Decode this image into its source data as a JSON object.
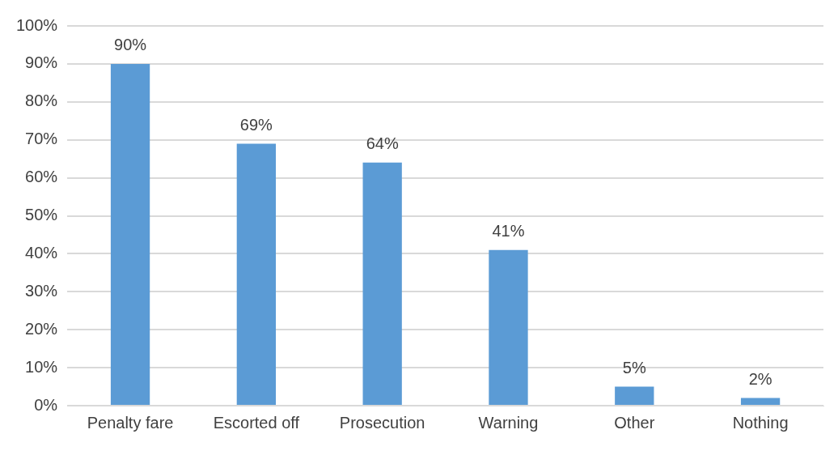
{
  "chart_data": {
    "type": "bar",
    "categories": [
      "Penalty fare",
      "Escorted off",
      "Prosecution",
      "Warning",
      "Other",
      "Nothing"
    ],
    "values": [
      90,
      69,
      64,
      41,
      5,
      2
    ],
    "value_labels": [
      "90%",
      "69%",
      "64%",
      "41%",
      "5%",
      "2%"
    ],
    "color": "#5b9bd5",
    "ylim": [
      0,
      100
    ],
    "yticks": [
      {
        "value": 0,
        "label": "0%"
      },
      {
        "value": 10,
        "label": "10%"
      },
      {
        "value": 20,
        "label": "20%"
      },
      {
        "value": 30,
        "label": "30%"
      },
      {
        "value": 40,
        "label": "40%"
      },
      {
        "value": 50,
        "label": "50%"
      },
      {
        "value": 60,
        "label": "60%"
      },
      {
        "value": 70,
        "label": "70%"
      },
      {
        "value": 80,
        "label": "80%"
      },
      {
        "value": 90,
        "label": "90%"
      },
      {
        "value": 100,
        "label": "100%"
      }
    ],
    "grid": "y"
  }
}
